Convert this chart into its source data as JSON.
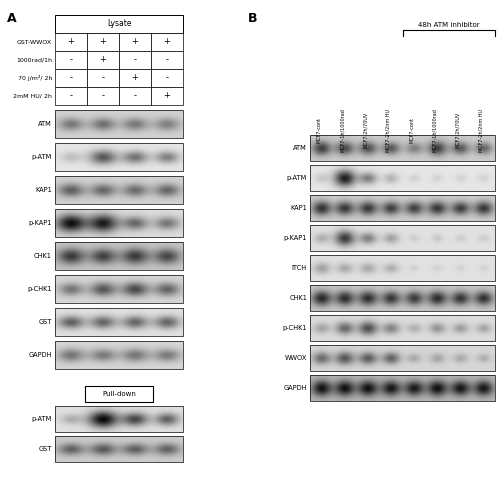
{
  "panel_A_label": "A",
  "panel_B_label": "B",
  "lysate_title": "Lysate",
  "pulldown_title": "Pull-down",
  "atm_inhibitor_label": "48h ATM inhibitor",
  "panel_A_rows": [
    "GST-WWOX",
    "1000rad/1h",
    "70 j/m²/ 2h",
    "2mM HU/ 2h"
  ],
  "panel_A_signs": [
    [
      "+",
      "+",
      "+",
      "+"
    ],
    [
      "-",
      "+",
      "-",
      "-"
    ],
    [
      "-",
      "-",
      "+",
      "-"
    ],
    [
      "-",
      "-",
      "-",
      "+"
    ]
  ],
  "panel_A_blots_lysate": [
    "ATM",
    "p-ATM",
    "KAP1",
    "p-KAP1",
    "CHK1",
    "p-CHK1",
    "GST",
    "GAPDH"
  ],
  "panel_A_blots_pulldown": [
    "p-ATM",
    "GST"
  ],
  "panel_B_col_labels": [
    "MCF7-cont",
    "MCF7-1h/1000rad",
    "MCF7-2h/70UV",
    "MCF7-2h/2nm HU",
    "MCF7-cont",
    "MCF7-1h/1000rad",
    "MCF7-2h/70UV",
    "MCF7-2h/2nm HU"
  ],
  "panel_B_blots": [
    "ATM",
    "p-ATM",
    "KAP1",
    "p-KAP1",
    "ITCH",
    "CHK1",
    "p-CHK1",
    "WWOX",
    "GAPDH"
  ],
  "white": "#ffffff",
  "black": "#000000"
}
